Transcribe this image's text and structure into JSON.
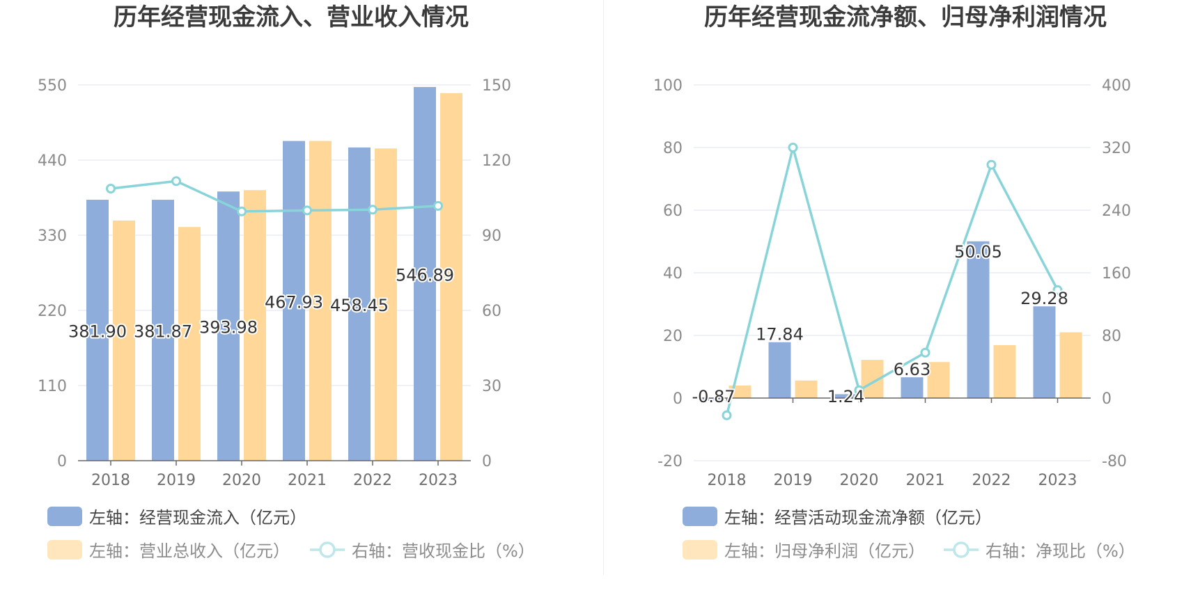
{
  "colors": {
    "bar1": "#8eaddb",
    "bar2": "#ffd899",
    "bar2_legend": "#ffe6bd",
    "line": "#88d4d8",
    "line_legend": "#bde7ea",
    "grid": "#dfe3f0",
    "axis": "#666666"
  },
  "chart_data": [
    {
      "type": "bar",
      "title": "历年经营现金流入、营业收入情况",
      "categories": [
        "2018",
        "2019",
        "2020",
        "2021",
        "2022",
        "2023"
      ],
      "y_left": {
        "min": 0,
        "max": 550,
        "ticks": [
          "0",
          "110",
          "220",
          "330",
          "440",
          "550"
        ]
      },
      "y_right": {
        "min": 0,
        "max": 150,
        "ticks": [
          "0",
          "30",
          "60",
          "90",
          "120",
          "150"
        ]
      },
      "series": [
        {
          "name": "左轴：经营现金流入（亿元）",
          "axis": "left",
          "kind": "bar",
          "values": [
            381.9,
            381.87,
            393.98,
            467.93,
            458.45,
            546.89
          ],
          "labels": [
            "381.90",
            "381.87",
            "393.98",
            "467.93",
            "458.45",
            "546.89"
          ]
        },
        {
          "name": "左轴：营业总收入（亿元）",
          "axis": "left",
          "kind": "bar",
          "values": [
            351.5,
            342.0,
            396.0,
            468.0,
            457.0,
            538.0
          ]
        },
        {
          "name": "右轴：营收现金比（%）",
          "axis": "right",
          "kind": "line",
          "values": [
            108.6,
            111.6,
            99.5,
            99.9,
            100.2,
            101.7
          ]
        }
      ]
    },
    {
      "type": "bar",
      "title": "历年经营现金流净额、归母净利润情况",
      "categories": [
        "2018",
        "2019",
        "2020",
        "2021",
        "2022",
        "2023"
      ],
      "y_left": {
        "min": -20,
        "max": 100,
        "ticks": [
          "-20",
          "0",
          "20",
          "40",
          "60",
          "80",
          "100"
        ]
      },
      "y_right": {
        "min": -80,
        "max": 400,
        "ticks": [
          "-80",
          "0",
          "80",
          "160",
          "240",
          "320",
          "400"
        ]
      },
      "series": [
        {
          "name": "左轴：经营活动现金流净额（亿元）",
          "axis": "left",
          "kind": "bar",
          "values": [
            -0.87,
            17.84,
            1.24,
            6.63,
            50.05,
            29.28
          ],
          "labels": [
            "-0.87",
            "17.84",
            "1.24",
            "6.63",
            "50.05",
            "29.28"
          ]
        },
        {
          "name": "左轴：归母净利润（亿元）",
          "axis": "left",
          "kind": "bar",
          "values": [
            4.0,
            5.6,
            12.2,
            11.5,
            16.9,
            21.0
          ]
        },
        {
          "name": "右轴：净现比（%）",
          "axis": "right",
          "kind": "line",
          "values": [
            -22,
            320,
            10,
            58,
            298,
            138
          ]
        }
      ]
    }
  ]
}
